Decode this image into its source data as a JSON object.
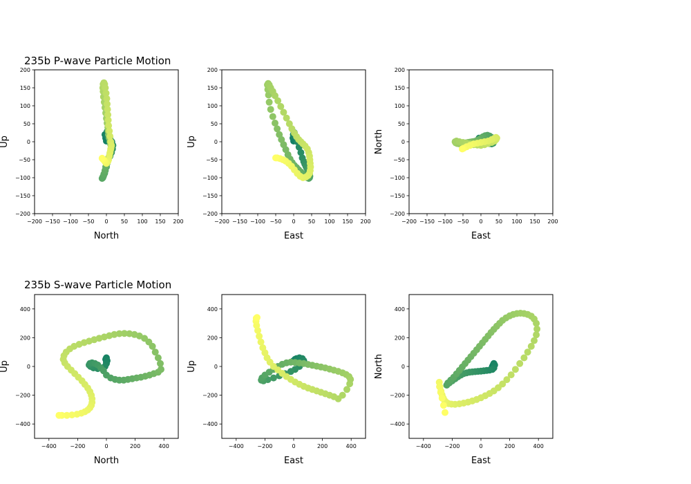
{
  "colors": {
    "colormap": "summer_r",
    "start": "#117f64",
    "mid": "#9acc66",
    "end": "#ffff66"
  },
  "chart_data": [
    {
      "id": "p-north-up",
      "type": "scatter",
      "section": "235b P-wave Particle Motion",
      "xlabel": "North",
      "ylabel": "Up",
      "xlim": [
        -200,
        200
      ],
      "ylim": [
        -200,
        200
      ],
      "xticks": [
        -200,
        -150,
        -100,
        -50,
        0,
        50,
        100,
        150,
        200
      ],
      "yticks": [
        -200,
        -150,
        -100,
        -50,
        0,
        50,
        100,
        150,
        200
      ],
      "x": [
        0,
        -2,
        -4,
        2,
        5,
        4,
        10,
        15,
        18,
        17,
        14,
        10,
        5,
        2,
        0,
        -3,
        -5,
        -8,
        -10,
        -12,
        -10,
        -7,
        -4,
        -2,
        0,
        2,
        4,
        6,
        8,
        10,
        12,
        14,
        12,
        10,
        8,
        6,
        5,
        4,
        2,
        0,
        -2,
        -4,
        -6,
        -8,
        -9,
        -10,
        -9,
        -7,
        -5,
        -3,
        -1,
        1,
        2,
        3,
        4,
        5,
        6,
        8,
        10,
        12,
        14,
        12,
        10,
        8,
        6,
        4,
        2,
        0,
        -2,
        -4,
        -6,
        -8,
        -10,
        -12
      ],
      "y": [
        2,
        10,
        20,
        28,
        25,
        15,
        8,
        0,
        -10,
        -20,
        -30,
        -40,
        -50,
        -60,
        -70,
        -80,
        -88,
        -95,
        -100,
        -102,
        -98,
        -90,
        -80,
        -70,
        -62,
        -55,
        -50,
        -45,
        -40,
        -32,
        -24,
        -15,
        -8,
        0,
        10,
        20,
        30,
        40,
        52,
        65,
        80,
        95,
        110,
        125,
        140,
        150,
        160,
        164,
        160,
        150,
        135,
        120,
        105,
        90,
        75,
        60,
        45,
        30,
        15,
        0,
        -10,
        -20,
        -30,
        -40,
        -50,
        -55,
        -58,
        -60,
        -58,
        -55,
        -52,
        -50,
        -48,
        -46
      ]
    },
    {
      "id": "p-east-up",
      "type": "scatter",
      "section": "235b P-wave Particle Motion",
      "xlabel": "East",
      "ylabel": "Up",
      "xlim": [
        -200,
        200
      ],
      "ylim": [
        -200,
        200
      ],
      "xticks": [
        -200,
        -150,
        -100,
        -50,
        0,
        50,
        100,
        150,
        200
      ],
      "yticks": [
        -200,
        -150,
        -100,
        -50,
        0,
        50,
        100,
        150,
        200
      ],
      "x": [
        0,
        -2,
        -1,
        2,
        6,
        10,
        15,
        20,
        24,
        28,
        31,
        34,
        36,
        38,
        40,
        42,
        44,
        45,
        44,
        42,
        38,
        32,
        26,
        20,
        14,
        8,
        2,
        -4,
        -10,
        -16,
        -22,
        -28,
        -34,
        -40,
        -46,
        -52,
        -58,
        -64,
        -68,
        -70,
        -72,
        -73,
        -71,
        -68,
        -64,
        -58,
        -52,
        -44,
        -36,
        -28,
        -20,
        -12,
        -5,
        2,
        8,
        14,
        20,
        26,
        32,
        38,
        42,
        44,
        45,
        46,
        47,
        46,
        44,
        40,
        34,
        26,
        18,
        10,
        2,
        -6,
        -14,
        -22,
        -30,
        -38,
        -46,
        -50
      ],
      "y": [
        2,
        10,
        20,
        25,
        15,
        0,
        -15,
        -30,
        -45,
        -55,
        -62,
        -68,
        -72,
        -76,
        -80,
        -84,
        -90,
        -96,
        -100,
        -102,
        -100,
        -96,
        -90,
        -84,
        -78,
        -72,
        -66,
        -58,
        -48,
        -36,
        -22,
        -8,
        6,
        20,
        36,
        52,
        70,
        90,
        110,
        130,
        145,
        158,
        162,
        158,
        150,
        140,
        128,
        114,
        98,
        82,
        66,
        50,
        36,
        24,
        14,
        6,
        0,
        -6,
        -12,
        -20,
        -30,
        -40,
        -50,
        -60,
        -70,
        -80,
        -88,
        -94,
        -98,
        -100,
        -96,
        -88,
        -78,
        -68,
        -60,
        -54,
        -50,
        -47,
        -45,
        -45
      ]
    },
    {
      "id": "p-east-north",
      "type": "scatter",
      "section": "235b P-wave Particle Motion",
      "xlabel": "East",
      "ylabel": "North",
      "xlim": [
        -200,
        200
      ],
      "ylim": [
        -200,
        200
      ],
      "xticks": [
        -200,
        -150,
        -100,
        -50,
        0,
        50,
        100,
        150,
        200
      ],
      "yticks": [
        -200,
        -150,
        -100,
        -50,
        0,
        50,
        100,
        150,
        200
      ],
      "x": [
        0,
        -3,
        -5,
        0,
        6,
        12,
        18,
        24,
        30,
        34,
        36,
        34,
        30,
        24,
        18,
        12,
        6,
        0,
        -6,
        -12,
        -18,
        -24,
        -30,
        -36,
        -42,
        -48,
        -54,
        -60,
        -66,
        -70,
        -72,
        -68,
        -60,
        -50,
        -40,
        -30,
        -20,
        -10,
        0,
        10,
        20,
        30,
        38,
        42,
        44,
        42,
        38,
        30,
        20,
        10,
        0,
        -10,
        -20,
        -30,
        -40,
        -48,
        -52
      ],
      "y": [
        0,
        5,
        10,
        8,
        4,
        0,
        -3,
        -5,
        -6,
        -4,
        0,
        6,
        12,
        16,
        18,
        17,
        14,
        10,
        6,
        3,
        1,
        0,
        -1,
        -2,
        -3,
        -4,
        -5,
        -6,
        -5,
        -3,
        0,
        2,
        0,
        -2,
        -4,
        -6,
        -8,
        -9,
        -10,
        -8,
        -5,
        -2,
        2,
        6,
        10,
        12,
        10,
        6,
        2,
        0,
        -2,
        -4,
        -6,
        -10,
        -14,
        -18,
        -20
      ]
    },
    {
      "id": "s-north-up",
      "type": "scatter",
      "section": "235b S-wave Particle Motion",
      "xlabel": "North",
      "ylabel": "Up",
      "xlim": [
        -500,
        500
      ],
      "ylim": [
        -500,
        500
      ],
      "xticks": [
        -400,
        -200,
        0,
        200,
        400
      ],
      "yticks": [
        -400,
        -200,
        0,
        200,
        400
      ],
      "x": [
        0,
        -5,
        0,
        5,
        0,
        -10,
        -30,
        -60,
        -90,
        -110,
        -120,
        -115,
        -100,
        -80,
        -60,
        -40,
        -20,
        0,
        30,
        60,
        90,
        120,
        150,
        180,
        210,
        240,
        270,
        300,
        330,
        360,
        380,
        375,
        360,
        340,
        320,
        295,
        265,
        230,
        195,
        160,
        125,
        90,
        55,
        20,
        -15,
        -50,
        -85,
        -120,
        -155,
        -190,
        -225,
        -255,
        -280,
        -295,
        -300,
        -290,
        -270,
        -245,
        -220,
        -195,
        -170,
        -150,
        -130,
        -115,
        -105,
        -100,
        -100,
        -105,
        -115,
        -130,
        -150,
        -175,
        -205,
        -240,
        -275,
        -310,
        -330
      ],
      "y": [
        30,
        50,
        60,
        40,
        20,
        0,
        -10,
        -15,
        -10,
        0,
        10,
        20,
        25,
        20,
        10,
        -10,
        -30,
        -60,
        -80,
        -90,
        -95,
        -95,
        -90,
        -85,
        -80,
        -75,
        -68,
        -60,
        -50,
        -40,
        -20,
        20,
        60,
        100,
        140,
        170,
        195,
        212,
        222,
        228,
        230,
        228,
        222,
        214,
        205,
        196,
        186,
        176,
        166,
        154,
        140,
        122,
        100,
        75,
        50,
        25,
        0,
        -25,
        -50,
        -75,
        -100,
        -125,
        -150,
        -175,
        -200,
        -225,
        -250,
        -270,
        -288,
        -303,
        -315,
        -325,
        -332,
        -337,
        -340,
        -340,
        -340
      ]
    },
    {
      "id": "s-east-up",
      "type": "scatter",
      "section": "235b S-wave Particle Motion",
      "xlabel": "East",
      "ylabel": "Up",
      "xlim": [
        -500,
        500
      ],
      "ylim": [
        -500,
        500
      ],
      "xticks": [
        -400,
        -200,
        0,
        200,
        400
      ],
      "yticks": [
        -400,
        -200,
        0,
        200,
        400
      ],
      "x": [
        0,
        10,
        20,
        40,
        60,
        70,
        60,
        40,
        10,
        -20,
        -60,
        -100,
        -140,
        -180,
        -210,
        -225,
        -220,
        -200,
        -170,
        -140,
        -110,
        -80,
        -50,
        -20,
        10,
        40,
        70,
        100,
        130,
        160,
        190,
        220,
        250,
        280,
        310,
        340,
        365,
        385,
        395,
        390,
        370,
        340,
        310,
        280,
        250,
        220,
        190,
        160,
        130,
        100,
        70,
        40,
        10,
        -20,
        -50,
        -80,
        -110,
        -140,
        -165,
        -185,
        -200,
        -215,
        -228,
        -240,
        -250,
        -258,
        -262,
        -260,
        -255
      ],
      "y": [
        40,
        50,
        55,
        60,
        55,
        40,
        20,
        0,
        -20,
        -35,
        -50,
        -65,
        -80,
        -92,
        -100,
        -95,
        -80,
        -60,
        -40,
        -20,
        0,
        15,
        25,
        30,
        28,
        24,
        20,
        14,
        8,
        2,
        -4,
        -10,
        -18,
        -26,
        -34,
        -44,
        -56,
        -70,
        -90,
        -120,
        -160,
        -200,
        -225,
        -210,
        -200,
        -190,
        -180,
        -170,
        -160,
        -150,
        -138,
        -124,
        -108,
        -90,
        -70,
        -48,
        -24,
        0,
        30,
        60,
        95,
        130,
        170,
        210,
        250,
        285,
        315,
        335,
        340
      ]
    },
    {
      "id": "s-east-north",
      "type": "scatter",
      "section": "235b S-wave Particle Motion",
      "xlabel": "East",
      "ylabel": "North",
      "xlim": [
        -500,
        500
      ],
      "ylim": [
        -500,
        500
      ],
      "xticks": [
        -400,
        -200,
        0,
        200,
        400
      ],
      "yticks": [
        -400,
        -200,
        0,
        200,
        400
      ],
      "x": [
        80,
        85,
        90,
        95,
        90,
        80,
        60,
        40,
        20,
        0,
        -20,
        -40,
        -60,
        -80,
        -100,
        -120,
        -140,
        -160,
        -180,
        -200,
        -220,
        -238,
        -230,
        -210,
        -190,
        -170,
        -150,
        -130,
        -110,
        -90,
        -70,
        -50,
        -30,
        -10,
        10,
        30,
        50,
        70,
        90,
        110,
        130,
        150,
        175,
        200,
        225,
        250,
        275,
        300,
        325,
        350,
        370,
        385,
        390,
        385,
        370,
        350,
        325,
        300,
        270,
        240,
        210,
        180,
        150,
        120,
        90,
        60,
        30,
        0,
        -30,
        -60,
        -90,
        -120,
        -150,
        -180,
        -205,
        -225,
        -240,
        -252,
        -262,
        -270,
        -278,
        -285,
        -290,
        -288,
        -280,
        -270,
        -260,
        -250
      ],
      "y": [
        0,
        10,
        20,
        10,
        -10,
        -20,
        -25,
        -28,
        -30,
        -32,
        -34,
        -36,
        -38,
        -40,
        -44,
        -50,
        -60,
        -72,
        -86,
        -100,
        -115,
        -130,
        -115,
        -95,
        -75,
        -52,
        -28,
        -4,
        20,
        44,
        68,
        92,
        116,
        140,
        164,
        188,
        212,
        236,
        258,
        280,
        300,
        320,
        338,
        352,
        362,
        368,
        370,
        368,
        362,
        350,
        330,
        300,
        260,
        220,
        180,
        140,
        100,
        60,
        20,
        -20,
        -58,
        -92,
        -122,
        -148,
        -170,
        -188,
        -204,
        -218,
        -230,
        -240,
        -248,
        -255,
        -260,
        -263,
        -262,
        -258,
        -250,
        -238,
        -220,
        -198,
        -172,
        -142,
        -110,
        -140,
        -180,
        -220,
        -270,
        -320
      ]
    }
  ]
}
